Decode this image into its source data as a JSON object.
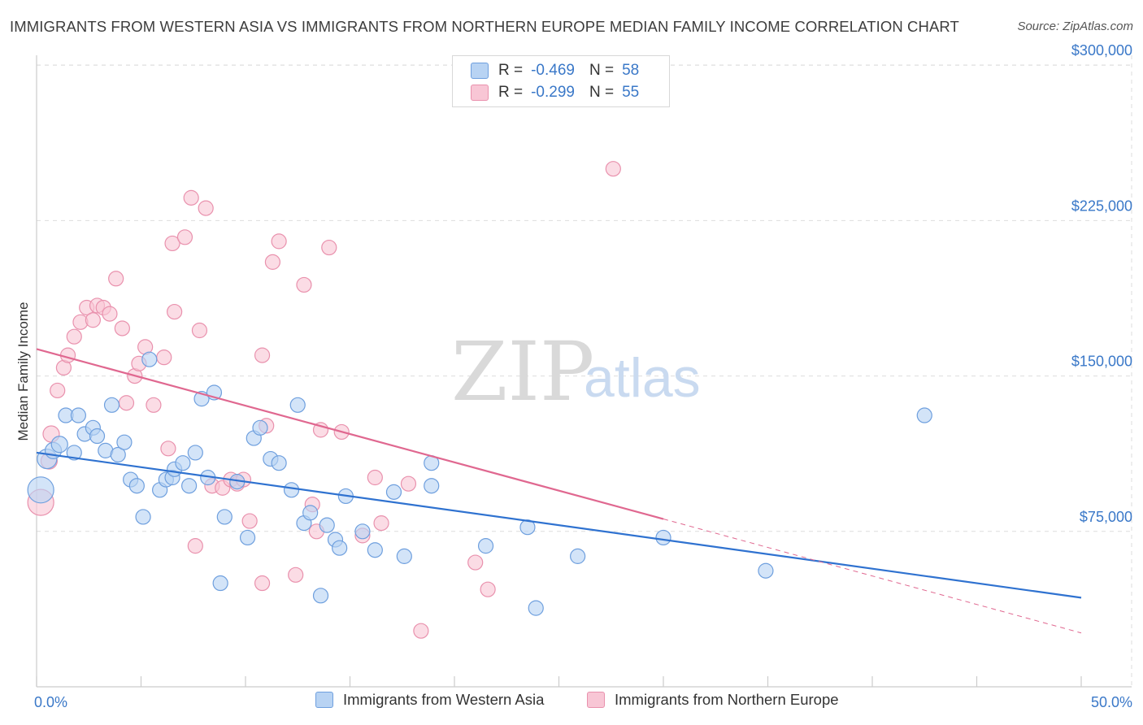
{
  "header": {
    "title": "IMMIGRANTS FROM WESTERN ASIA VS IMMIGRANTS FROM NORTHERN EUROPE MEDIAN FAMILY INCOME CORRELATION CHART",
    "source": "Source: ZipAtlas.com"
  },
  "watermark": {
    "zip": "ZIP",
    "atlas": "atlas"
  },
  "legend": {
    "series1": {
      "r_label": "R =",
      "r_value": "-0.469",
      "n_label": "N =",
      "n_value": "58"
    },
    "series2": {
      "r_label": "R =",
      "r_value": "-0.299",
      "n_label": "N =",
      "n_value": "55"
    }
  },
  "colors": {
    "series1_fill": "#b8d3f3",
    "series1_stroke": "#6e9fde",
    "series1_line": "#2f72d0",
    "series2_fill": "#f8c6d5",
    "series2_stroke": "#e991ad",
    "series2_line": "#e06890",
    "grid": "#dddddd",
    "axis_text": "#3a78c8"
  },
  "chart_data": {
    "type": "scatter",
    "title": "IMMIGRANTS FROM WESTERN ASIA VS IMMIGRANTS FROM NORTHERN EUROPE MEDIAN FAMILY INCOME CORRELATION CHART",
    "xlabel": "",
    "ylabel": "Median Family Income",
    "xlim": [
      0,
      50
    ],
    "ylim": [
      0,
      310000
    ],
    "x_tick_labels": [
      "0.0%",
      "50.0%"
    ],
    "y_ticks": [
      75000,
      150000,
      225000,
      300000
    ],
    "y_tick_labels": [
      "$75,000",
      "$150,000",
      "$225,000",
      "$300,000"
    ],
    "grid": "horizontal dashed",
    "legend_position": "bottom",
    "series": [
      {
        "name": "Immigrants from Western Asia",
        "trend": {
          "x": [
            0,
            50
          ],
          "y": [
            113000,
            43000
          ],
          "style": "solid"
        },
        "points": [
          [
            0.2,
            95000,
            16
          ],
          [
            0.5,
            110000,
            12
          ],
          [
            0.8,
            114000,
            10
          ],
          [
            1.1,
            117000,
            10
          ],
          [
            1.8,
            113000,
            9
          ],
          [
            1.4,
            131000,
            9
          ],
          [
            2.0,
            131000,
            9
          ],
          [
            2.3,
            122000,
            9
          ],
          [
            2.7,
            125000,
            9
          ],
          [
            2.9,
            121000,
            9
          ],
          [
            3.3,
            114000,
            9
          ],
          [
            3.6,
            136000,
            9
          ],
          [
            3.9,
            112000,
            9
          ],
          [
            4.2,
            118000,
            9
          ],
          [
            4.5,
            100000,
            9
          ],
          [
            4.8,
            97000,
            9
          ],
          [
            5.1,
            82000,
            9
          ],
          [
            5.4,
            158000,
            9
          ],
          [
            5.9,
            95000,
            9
          ],
          [
            6.2,
            100000,
            9
          ],
          [
            6.5,
            101000,
            9
          ],
          [
            6.6,
            105000,
            9
          ],
          [
            7.0,
            108000,
            9
          ],
          [
            7.3,
            97000,
            9
          ],
          [
            7.6,
            113000,
            9
          ],
          [
            7.9,
            139000,
            9
          ],
          [
            8.2,
            101000,
            9
          ],
          [
            8.5,
            142000,
            9
          ],
          [
            8.8,
            50000,
            9
          ],
          [
            9.0,
            82000,
            9
          ],
          [
            9.6,
            99000,
            9
          ],
          [
            10.1,
            72000,
            9
          ],
          [
            10.4,
            120000,
            9
          ],
          [
            10.7,
            125000,
            9
          ],
          [
            11.2,
            110000,
            9
          ],
          [
            11.6,
            108000,
            9
          ],
          [
            12.2,
            95000,
            9
          ],
          [
            12.5,
            136000,
            9
          ],
          [
            12.8,
            79000,
            9
          ],
          [
            13.1,
            84000,
            9
          ],
          [
            13.6,
            44000,
            9
          ],
          [
            13.9,
            78000,
            9
          ],
          [
            14.3,
            71000,
            9
          ],
          [
            14.5,
            67000,
            9
          ],
          [
            14.8,
            92000,
            9
          ],
          [
            15.6,
            75000,
            9
          ],
          [
            16.2,
            66000,
            9
          ],
          [
            17.1,
            94000,
            9
          ],
          [
            17.6,
            63000,
            9
          ],
          [
            18.9,
            97000,
            9
          ],
          [
            18.9,
            108000,
            9
          ],
          [
            21.5,
            68000,
            9
          ],
          [
            23.5,
            77000,
            9
          ],
          [
            23.9,
            38000,
            9
          ],
          [
            25.9,
            63000,
            9
          ],
          [
            30.0,
            72000,
            9
          ],
          [
            34.9,
            56000,
            9
          ],
          [
            42.5,
            131000,
            9
          ]
        ]
      },
      {
        "name": "Immigrants from Northern Europe",
        "trend": {
          "x": [
            0,
            30
          ],
          "y": [
            163000,
            81000
          ],
          "style": "solid",
          "extension": {
            "x": [
              30,
              50
            ],
            "y": [
              81000,
              26000
            ],
            "style": "dashed"
          }
        },
        "points": [
          [
            0.2,
            89000,
            16
          ],
          [
            0.6,
            109000,
            10
          ],
          [
            0.7,
            122000,
            10
          ],
          [
            1.0,
            143000,
            9
          ],
          [
            1.3,
            154000,
            9
          ],
          [
            1.5,
            160000,
            9
          ],
          [
            1.8,
            169000,
            9
          ],
          [
            2.1,
            176000,
            9
          ],
          [
            2.4,
            183000,
            9
          ],
          [
            2.7,
            177000,
            9
          ],
          [
            2.9,
            184000,
            9
          ],
          [
            3.2,
            183000,
            9
          ],
          [
            3.5,
            180000,
            9
          ],
          [
            3.8,
            197000,
            9
          ],
          [
            4.1,
            173000,
            9
          ],
          [
            4.3,
            137000,
            9
          ],
          [
            4.7,
            150000,
            9
          ],
          [
            4.9,
            156000,
            9
          ],
          [
            5.2,
            164000,
            9
          ],
          [
            5.6,
            136000,
            9
          ],
          [
            6.1,
            159000,
            9
          ],
          [
            6.3,
            115000,
            9
          ],
          [
            6.5,
            214000,
            9
          ],
          [
            6.6,
            181000,
            9
          ],
          [
            7.1,
            217000,
            9
          ],
          [
            7.4,
            236000,
            9
          ],
          [
            7.6,
            68000,
            9
          ],
          [
            7.8,
            172000,
            9
          ],
          [
            8.1,
            231000,
            9
          ],
          [
            8.4,
            97000,
            9
          ],
          [
            8.9,
            96000,
            9
          ],
          [
            9.3,
            100000,
            9
          ],
          [
            9.6,
            98000,
            9
          ],
          [
            9.9,
            100000,
            9
          ],
          [
            10.2,
            80000,
            9
          ],
          [
            10.8,
            160000,
            9
          ],
          [
            10.8,
            50000,
            9
          ],
          [
            11.0,
            126000,
            9
          ],
          [
            11.3,
            205000,
            9
          ],
          [
            11.6,
            215000,
            9
          ],
          [
            12.4,
            54000,
            9
          ],
          [
            12.8,
            194000,
            9
          ],
          [
            13.2,
            88000,
            9
          ],
          [
            13.4,
            75000,
            9
          ],
          [
            13.6,
            124000,
            9
          ],
          [
            14.0,
            212000,
            9
          ],
          [
            14.6,
            123000,
            9
          ],
          [
            15.6,
            73000,
            9
          ],
          [
            16.2,
            101000,
            9
          ],
          [
            16.5,
            79000,
            9
          ],
          [
            17.8,
            98000,
            9
          ],
          [
            18.4,
            27000,
            9
          ],
          [
            21.0,
            60000,
            9
          ],
          [
            21.6,
            47000,
            9
          ],
          [
            27.6,
            250000,
            9
          ]
        ]
      }
    ]
  }
}
